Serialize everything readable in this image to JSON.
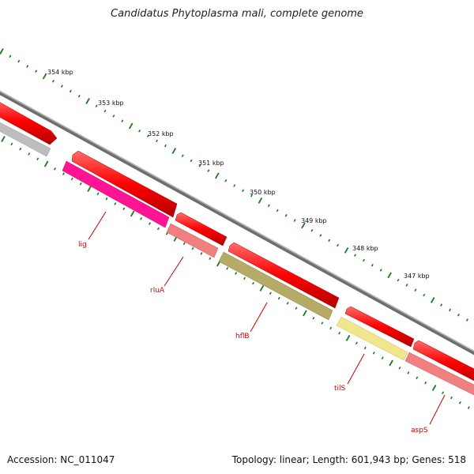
{
  "title": "Candidatus Phytoplasma mali, complete genome",
  "footer": {
    "accession": "Accession: NC_011047",
    "summary": "Topology: linear; Length: 601,943 bp; Genes: 518"
  },
  "ruler_labels": [
    "354 kbp",
    "353 kbp",
    "352 kbp",
    "351 kbp",
    "350 kbp",
    "349 kbp",
    "348 kbp",
    "347 kbp"
  ],
  "gene_labels": [
    "lig",
    "rluA",
    "hflB",
    "tilS",
    "aspS"
  ],
  "colors": {
    "backbone": "#8a8a8a",
    "cds": "#ff0000",
    "tick": "#1a7a1a",
    "label": "#cc0000",
    "lig": "#ff1493",
    "rluA": "#f08080",
    "hflB": "#b5ab66",
    "tilS": "#f2e68c",
    "aspS": "#f08080",
    "gray_feature": "#bdbdbd"
  }
}
